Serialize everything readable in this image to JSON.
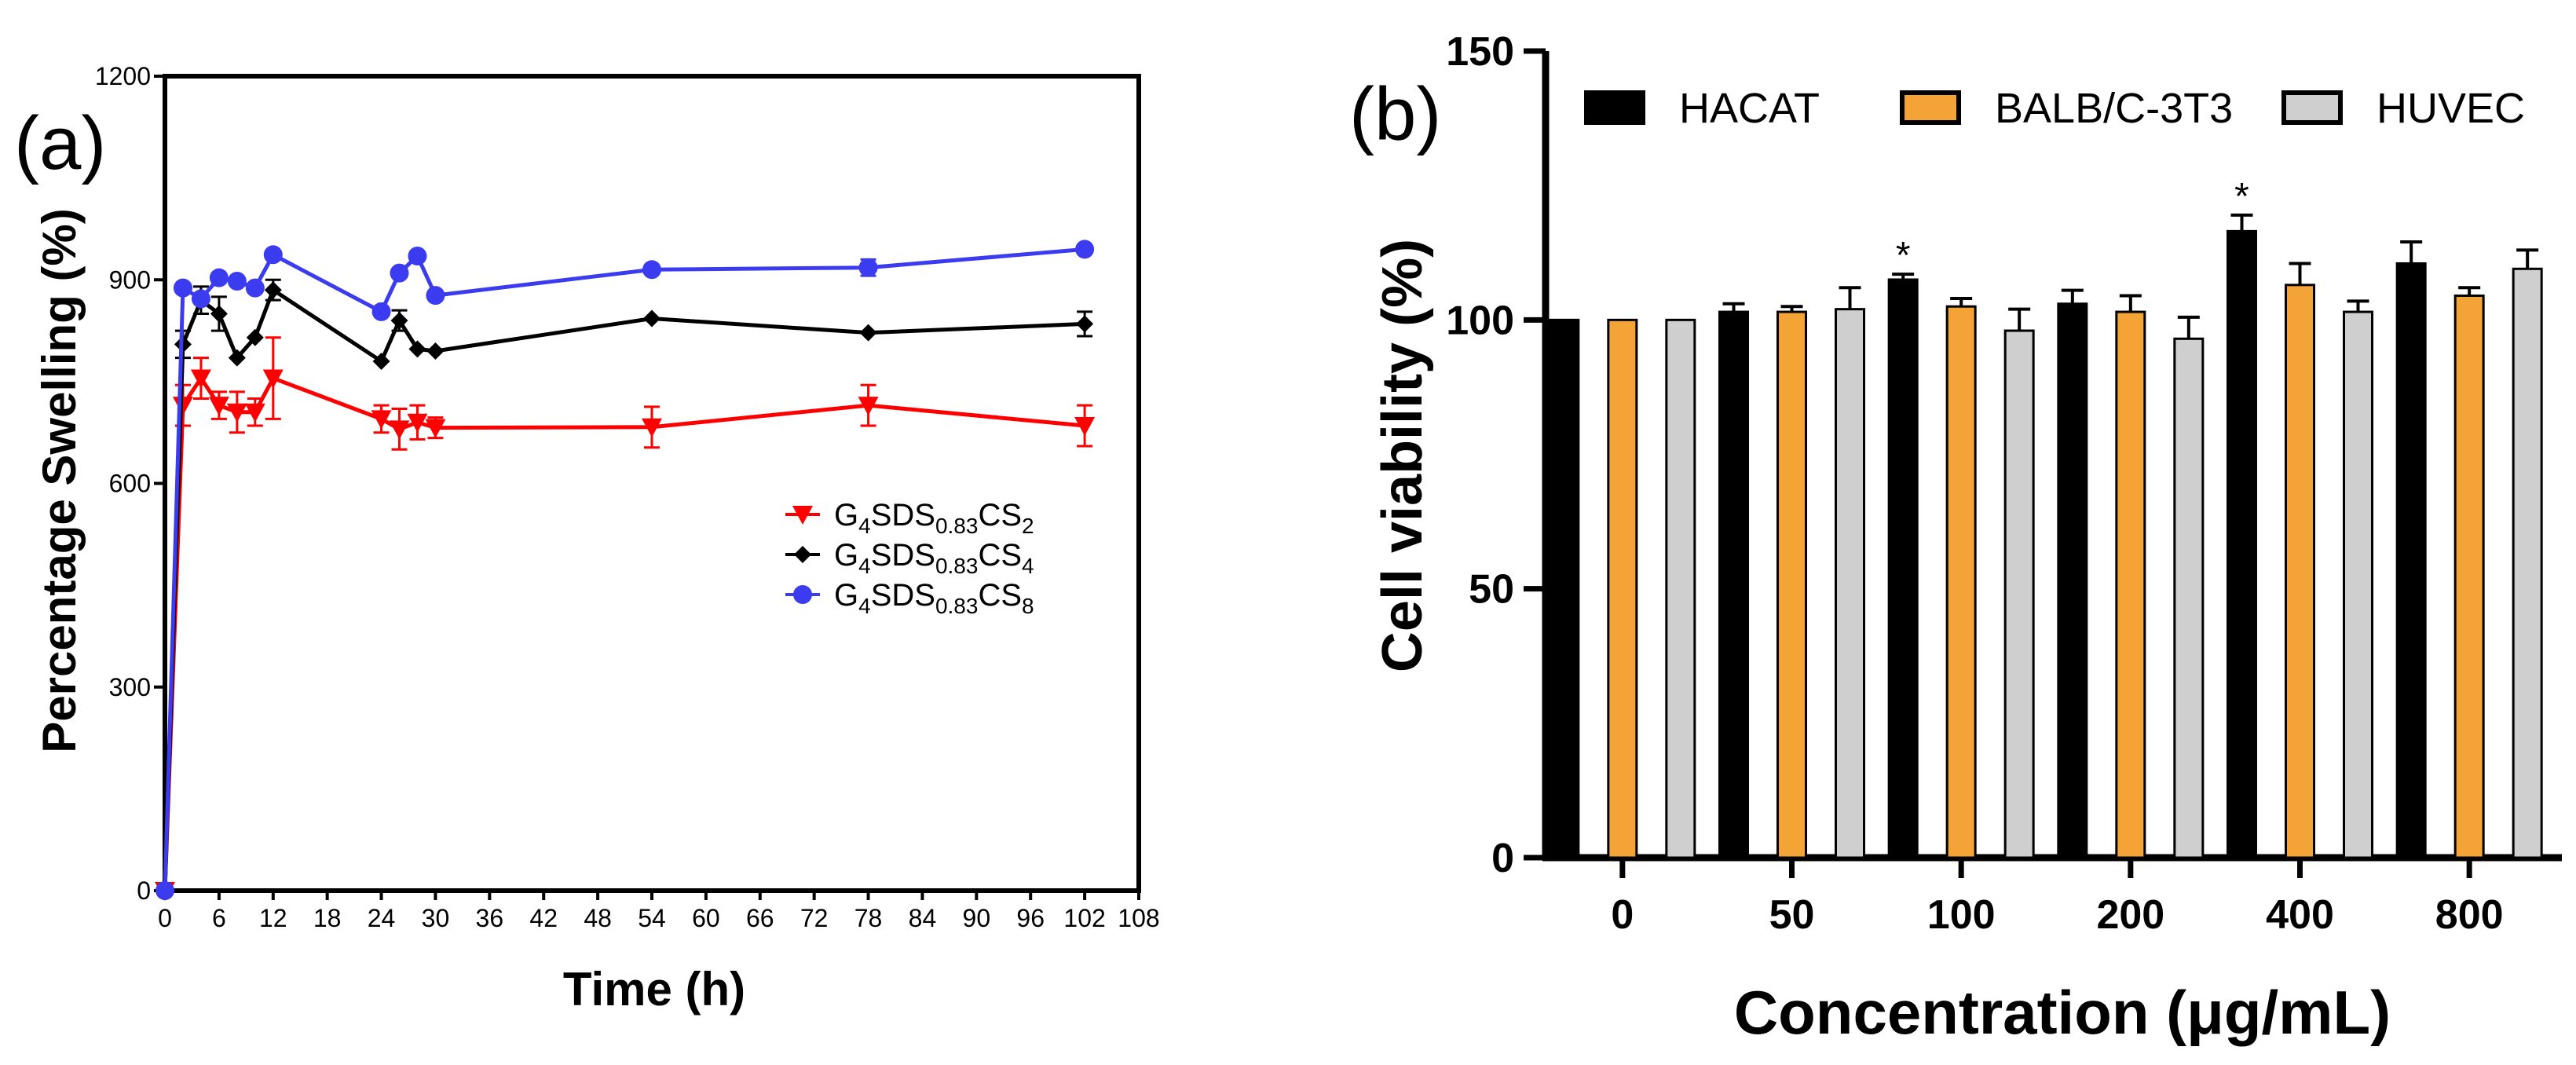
{
  "chart_data": [
    {
      "type": "line",
      "panel_label": "(a)",
      "xlabel": "Time (h)",
      "ylabel": "Percentage Swelling (%)",
      "xlim": [
        0,
        108
      ],
      "ylim": [
        0,
        1200
      ],
      "xticks": [
        0,
        6,
        12,
        18,
        24,
        30,
        36,
        42,
        48,
        54,
        60,
        66,
        72,
        78,
        84,
        90,
        96,
        102,
        108
      ],
      "yticks": [
        0,
        300,
        600,
        900,
        1200
      ],
      "series": [
        {
          "name": "G4SDS0.83CS2",
          "legend_parts": [
            [
              "G",
              ""
            ],
            [
              "4",
              "sub"
            ],
            [
              "SDS",
              ""
            ],
            [
              "0.83",
              "sub"
            ],
            [
              "CS",
              ""
            ],
            [
              "2",
              "sub"
            ]
          ],
          "color": "#ff0000",
          "marker": "triangle-down",
          "x": [
            0,
            2,
            4,
            6,
            8,
            10,
            12,
            24,
            26,
            28,
            30,
            54,
            78,
            102
          ],
          "y": [
            0,
            715,
            755,
            715,
            705,
            705,
            755,
            695,
            680,
            690,
            682,
            683,
            715,
            685
          ],
          "err": [
            0,
            30,
            30,
            20,
            30,
            20,
            60,
            20,
            30,
            25,
            15,
            30,
            30,
            30
          ]
        },
        {
          "name": "G4SDS0.83CS4",
          "legend_parts": [
            [
              "G",
              ""
            ],
            [
              "4",
              "sub"
            ],
            [
              "SDS",
              ""
            ],
            [
              "0.83",
              "sub"
            ],
            [
              "CS",
              ""
            ],
            [
              "4",
              "sub"
            ]
          ],
          "color": "#000000",
          "marker": "diamond",
          "x": [
            0,
            2,
            4,
            6,
            8,
            10,
            12,
            24,
            26,
            28,
            30,
            54,
            78,
            102
          ],
          "y": [
            0,
            805,
            870,
            850,
            785,
            815,
            885,
            780,
            840,
            798,
            795,
            843,
            822,
            835
          ],
          "err": [
            0,
            20,
            20,
            25,
            0,
            0,
            15,
            0,
            15,
            0,
            0,
            0,
            0,
            18
          ]
        },
        {
          "name": "G4SDS0.83CS8",
          "legend_parts": [
            [
              "G",
              ""
            ],
            [
              "4",
              "sub"
            ],
            [
              "SDS",
              ""
            ],
            [
              "0.83",
              "sub"
            ],
            [
              "CS",
              ""
            ],
            [
              "8",
              "sub"
            ]
          ],
          "color": "#3b3bf0",
          "marker": "circle",
          "x": [
            0,
            2,
            4,
            6,
            8,
            10,
            12,
            24,
            26,
            28,
            30,
            54,
            78,
            102
          ],
          "y": [
            0,
            888,
            872,
            903,
            898,
            888,
            937,
            853,
            910,
            935,
            877,
            915,
            918,
            945
          ],
          "err": [
            0,
            0,
            0,
            0,
            0,
            0,
            0,
            0,
            0,
            0,
            0,
            0,
            12,
            0
          ]
        }
      ]
    },
    {
      "type": "bar",
      "panel_label": "(b)",
      "xlabel": "Concentration (μg/mL)",
      "ylabel": "Cell viability (%)",
      "ylim": [
        0,
        150
      ],
      "yticks": [
        0,
        50,
        100,
        150
      ],
      "categories": [
        "0",
        "50",
        "100",
        "200",
        "400",
        "800"
      ],
      "series": [
        {
          "name": "HACAT",
          "color": "#000000",
          "values": [
            100,
            101.5,
            107.5,
            103,
            116.5,
            110.5
          ],
          "err": [
            0,
            1.5,
            1,
            2.5,
            3,
            4
          ]
        },
        {
          "name": "BALB/C-3T3",
          "color": "#f4a436",
          "values": [
            100,
            101.5,
            102.5,
            101.5,
            106.5,
            104.5
          ],
          "err": [
            0,
            1,
            1.5,
            3,
            4,
            1.5
          ]
        },
        {
          "name": "HUVEC",
          "color": "#cfcfcf",
          "values": [
            100,
            102,
            98,
            96.5,
            101.5,
            109.5
          ],
          "err": [
            0,
            4,
            4,
            4,
            2,
            3.5
          ]
        }
      ],
      "annotations": [
        {
          "text": "*",
          "category": "100",
          "series": "HACAT"
        },
        {
          "text": "*",
          "category": "400",
          "series": "HACAT"
        }
      ]
    }
  ]
}
